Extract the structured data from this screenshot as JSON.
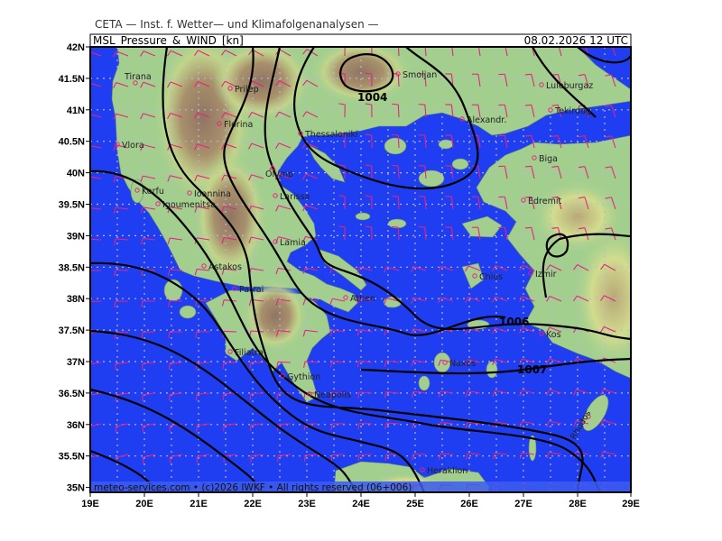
{
  "header": {
    "institute": "CETA — Inst. f. Wetter— und Klimafolgenanalysen —",
    "product": "MSL_Pressure_&_WIND_[kn]",
    "valid_time": "08.02.2026 12 UTC"
  },
  "footer": {
    "credit": "meteo-services.com • (c)2026 IWKF • All rights reserved (06+006)"
  },
  "axes": {
    "lat_labels": [
      "42N",
      "41.5N",
      "41N",
      "40.5N",
      "40N",
      "39.5N",
      "39N",
      "38.5N",
      "38N",
      "37.5N",
      "37N",
      "36.5N",
      "36N",
      "35.5N",
      "35N"
    ],
    "lon_labels": [
      "19E",
      "20E",
      "21E",
      "22E",
      "23E",
      "24E",
      "25E",
      "26E",
      "27E",
      "28E",
      "29E"
    ]
  },
  "isobar_labels": [
    "1004",
    "1006",
    "1007"
  ],
  "cities": [
    {
      "name": "Tirana"
    },
    {
      "name": "Prilep"
    },
    {
      "name": "Florina"
    },
    {
      "name": "Thessaloniki"
    },
    {
      "name": "Vlora"
    },
    {
      "name": "Olymp"
    },
    {
      "name": "Korfu"
    },
    {
      "name": "Ioannina"
    },
    {
      "name": "Igoumenitsa"
    },
    {
      "name": "Larissa"
    },
    {
      "name": "Lamia"
    },
    {
      "name": "Astakos"
    },
    {
      "name": "Patrai"
    },
    {
      "name": "Athen"
    },
    {
      "name": "Filiatra"
    },
    {
      "name": "Gythion"
    },
    {
      "name": "Neapolis"
    },
    {
      "name": "Smoljan"
    },
    {
      "name": "Alexandr."
    },
    {
      "name": "Luleburgaz"
    },
    {
      "name": "Tekirdag"
    },
    {
      "name": "Biga"
    },
    {
      "name": "Edremit"
    },
    {
      "name": "Chios"
    },
    {
      "name": "Izmir"
    },
    {
      "name": "Naxos"
    },
    {
      "name": "Kos"
    },
    {
      "name": "Rhodos"
    },
    {
      "name": "Heraklion"
    }
  ],
  "colors": {
    "sea": "#1f3ef2",
    "land": "#a3cf8e",
    "highland": "#c9d98a",
    "mountain": "#9c8468",
    "wind_barb": "#e8237d",
    "isobar": "#000000",
    "grid": "#b8b8d8",
    "olymp": "#2bd12b"
  }
}
